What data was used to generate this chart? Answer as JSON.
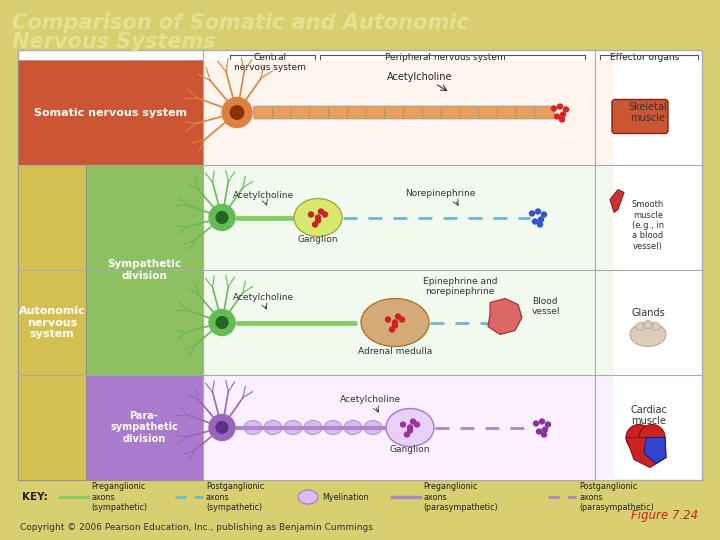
{
  "title_line1": "Comparison of Somatic and Autonomic",
  "title_line2": "Nervous Systems",
  "title_color": "#E8E090",
  "title_fontsize": 15,
  "bg_color": "#D8D070",
  "figure_bg": "#D8D070",
  "copyright": "Copyright © 2006 Pearson Education, Inc., publishing as Benjamin Cummings",
  "figure_label": "Figure 7.24",
  "somatic_color": "#CC5533",
  "autonomic_color": "#D4C050",
  "sympathetic_color": "#8CC060",
  "parasympathetic_color": "#AA7ACC",
  "somatic_neuron": "#E08040",
  "somatic_nucleus": "#883300",
  "green_neuron": "#66BB55",
  "green_nucleus": "#226622",
  "purple_neuron": "#9966BB",
  "purple_nucleus": "#553388",
  "ganglion_symp_color": "#D8E870",
  "ganglion_para_color": "#E8D8F0",
  "axon_green_solid": "#88CC66",
  "axon_cyan_dashed": "#66BBCC",
  "axon_purple_solid": "#AA88CC",
  "axon_purple_dashed": "#AA88CC",
  "red_dots": "#DD2222",
  "blue_dots": "#3355CC",
  "purple_dots": "#883399"
}
